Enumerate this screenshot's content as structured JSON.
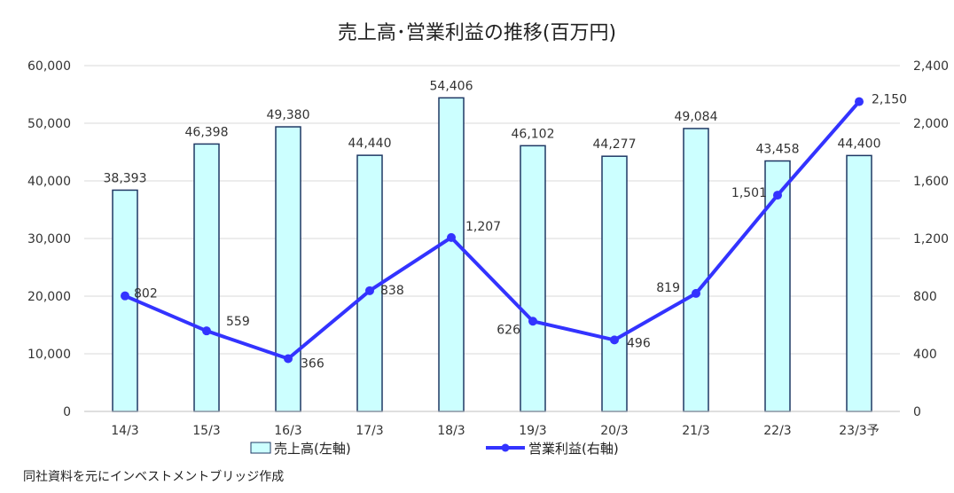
{
  "chart_data": {
    "type": "bar",
    "title": "売上高･営業利益の推移(百万円)",
    "categories": [
      "14/3",
      "15/3",
      "16/3",
      "17/3",
      "18/3",
      "19/3",
      "20/3",
      "21/3",
      "22/3",
      "23/3予"
    ],
    "series": [
      {
        "name": "売上高(左軸)",
        "type": "bar",
        "axis": "left",
        "values": [
          38393,
          46398,
          49380,
          44440,
          54406,
          46102,
          44277,
          49084,
          43458,
          44400
        ],
        "labels": [
          "38,393",
          "46,398",
          "49,380",
          "44,440",
          "54,406",
          "46,102",
          "44,277",
          "49,084",
          "43,458",
          "44,400"
        ],
        "fill": "#ccffff",
        "stroke": "#1f3864"
      },
      {
        "name": "営業利益(右軸)",
        "type": "line",
        "axis": "right",
        "values": [
          802,
          559,
          366,
          838,
          1207,
          626,
          496,
          819,
          1501,
          2150
        ],
        "labels": [
          "802",
          "559",
          "366",
          "838",
          "1,207",
          "626",
          "496",
          "819",
          "1,501",
          "2,150"
        ],
        "color": "#3333ff"
      }
    ],
    "y_left": {
      "min": 0,
      "max": 60000,
      "step": 10000,
      "ticks": [
        "0",
        "10,000",
        "20,000",
        "30,000",
        "40,000",
        "50,000",
        "60,000"
      ]
    },
    "y_right": {
      "min": 0,
      "max": 2400,
      "step": 400,
      "ticks": [
        "0",
        "400",
        "800",
        "1,200",
        "1,600",
        "2,000",
        "2,400"
      ]
    },
    "grid": true,
    "legend_position": "bottom"
  },
  "source_note": "同社資料を元にインベストメントブリッジ作成"
}
